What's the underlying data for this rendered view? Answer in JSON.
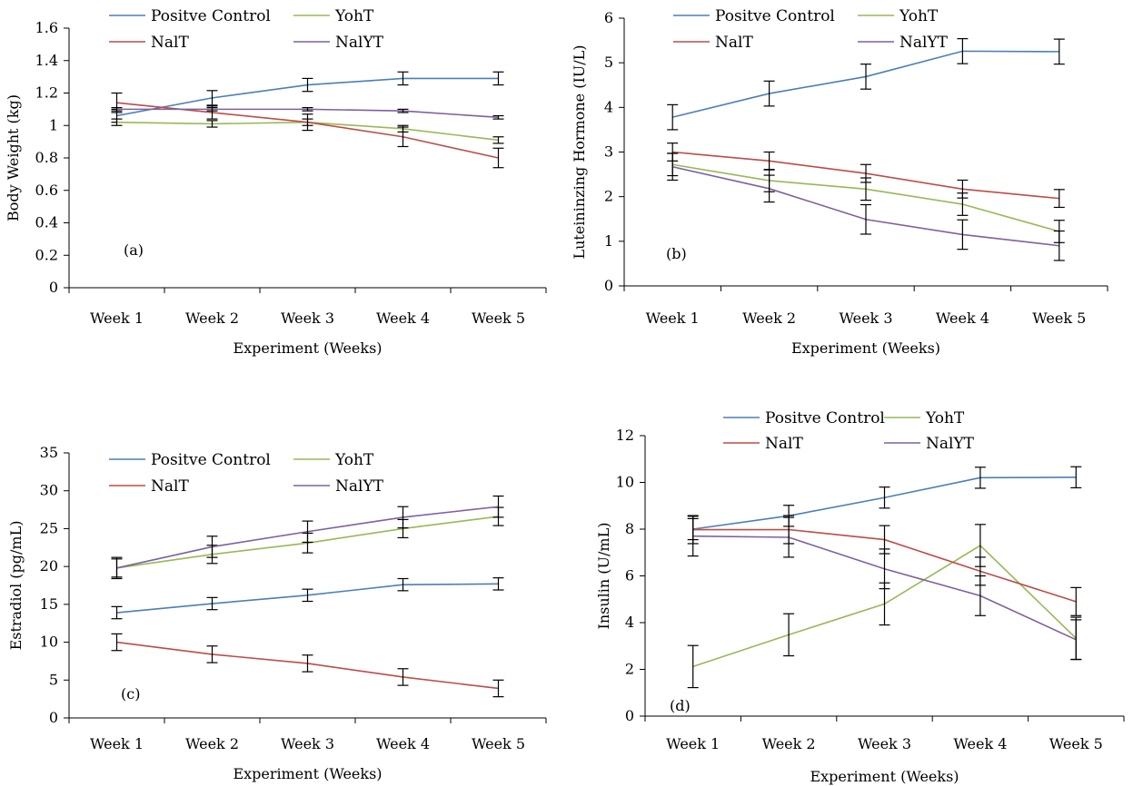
{
  "colors": {
    "positive_control": "#4A7EBB",
    "yoht": "#98B954",
    "nalt": "#BE4B48",
    "nalyt": "#7D60A0",
    "axis": "#000000"
  },
  "chart_data": [
    {
      "type": "line",
      "panel_label": "(a)",
      "xlabel": "Experiment (Weeks)",
      "ylabel": "Body Weight (kg)",
      "categories": [
        "Week 1",
        "Week 2",
        "Week 3",
        "Week 4",
        "Week 5"
      ],
      "ylim": [
        0,
        1.6
      ],
      "yticks": [
        0,
        0.2,
        0.4,
        0.6,
        0.8,
        1,
        1.2,
        1.4,
        1.6
      ],
      "ytick_labels": [
        "0",
        "0.2",
        "0.4",
        "0.6",
        "0.8",
        "1",
        "1.2",
        "1.4",
        "1.6"
      ],
      "grid": false,
      "legend_position": "top",
      "series": [
        {
          "name": "Positve Control",
          "color_key": "positive_control",
          "values": [
            1.06,
            1.17,
            1.25,
            1.29,
            1.29
          ],
          "errors": [
            0.04,
            0.045,
            0.04,
            0.04,
            0.04
          ]
        },
        {
          "name": "YohT",
          "color_key": "yoht",
          "values": [
            1.02,
            1.01,
            1.02,
            0.98,
            0.91
          ],
          "errors": [
            0.02,
            0.02,
            0.02,
            0.02,
            0.02
          ]
        },
        {
          "name": "NalT",
          "color_key": "nalt",
          "values": [
            1.14,
            1.08,
            1.02,
            0.93,
            0.8
          ],
          "errors": [
            0.06,
            0.04,
            0.05,
            0.06,
            0.06
          ]
        },
        {
          "name": "NalYT",
          "color_key": "nalyt",
          "values": [
            1.1,
            1.1,
            1.1,
            1.09,
            1.05
          ],
          "errors": [
            0.01,
            0.01,
            0.01,
            0.01,
            0.01
          ]
        }
      ]
    },
    {
      "type": "line",
      "panel_label": "(b)",
      "xlabel": "Experiment (Weeks)",
      "ylabel": "Luteininzing Hormone (IU/L)",
      "categories": [
        "Week 1",
        "Week 2",
        "Week 3",
        "Week 4",
        "Week 5"
      ],
      "ylim": [
        0,
        6
      ],
      "yticks": [
        0,
        1,
        2,
        3,
        4,
        5,
        6
      ],
      "ytick_labels": [
        "0",
        "1",
        "2",
        "3",
        "4",
        "5",
        "6"
      ],
      "grid": false,
      "legend_position": "top",
      "series": [
        {
          "name": "Positve Control",
          "color_key": "positive_control",
          "values": [
            3.78,
            4.31,
            4.69,
            5.26,
            5.25
          ],
          "errors": [
            0.28,
            0.28,
            0.28,
            0.28,
            0.28
          ]
        },
        {
          "name": "YohT",
          "color_key": "yoht",
          "values": [
            2.72,
            2.36,
            2.17,
            1.83,
            1.22
          ],
          "errors": [
            0.25,
            0.25,
            0.25,
            0.25,
            0.25
          ]
        },
        {
          "name": "NalT",
          "color_key": "nalt",
          "values": [
            3.0,
            2.8,
            2.52,
            2.17,
            1.96
          ],
          "errors": [
            0.2,
            0.2,
            0.2,
            0.2,
            0.2
          ]
        },
        {
          "name": "NalYT",
          "color_key": "nalyt",
          "values": [
            2.67,
            2.18,
            1.49,
            1.15,
            0.9
          ],
          "errors": [
            0.3,
            0.3,
            0.33,
            0.33,
            0.33
          ]
        }
      ]
    },
    {
      "type": "line",
      "panel_label": "(c)",
      "xlabel": "Experiment (Weeks)",
      "ylabel": "Estradiol (pg/mL)",
      "categories": [
        "Week 1",
        "Week 2",
        "Week 3",
        "Week 4",
        "Week 5"
      ],
      "ylim": [
        0,
        35
      ],
      "yticks": [
        0,
        5,
        10,
        15,
        20,
        25,
        30,
        35
      ],
      "ytick_labels": [
        "0",
        "5",
        "10",
        "15",
        "20",
        "25",
        "30",
        "35"
      ],
      "grid": false,
      "legend_position": "top",
      "series": [
        {
          "name": "Positve Control",
          "color_key": "positive_control",
          "values": [
            13.9,
            15.1,
            16.2,
            17.6,
            17.7
          ],
          "errors": [
            0.8,
            0.8,
            0.8,
            0.8,
            0.8
          ]
        },
        {
          "name": "YohT",
          "color_key": "yoht",
          "values": [
            19.8,
            21.6,
            23.1,
            25.0,
            26.6
          ],
          "errors": [
            1.2,
            1.2,
            1.3,
            1.2,
            1.2
          ]
        },
        {
          "name": "NalT",
          "color_key": "nalt",
          "values": [
            10.0,
            8.4,
            7.2,
            5.4,
            3.9
          ],
          "errors": [
            1.1,
            1.1,
            1.1,
            1.1,
            1.1
          ]
        },
        {
          "name": "NalYT",
          "color_key": "nalyt",
          "values": [
            19.8,
            22.6,
            24.6,
            26.5,
            27.9
          ],
          "errors": [
            1.4,
            1.4,
            1.4,
            1.4,
            1.4
          ]
        }
      ]
    },
    {
      "type": "line",
      "panel_label": "(d)",
      "xlabel": "Experiment (Weeks)",
      "ylabel": "Insulin (U/mL)",
      "categories": [
        "Week 1",
        "Week 2",
        "Week 3",
        "Week 4",
        "Week 5"
      ],
      "ylim": [
        0,
        12
      ],
      "yticks": [
        0,
        2,
        4,
        6,
        8,
        10,
        12
      ],
      "ytick_labels": [
        "0",
        "2",
        "4",
        "6",
        "8",
        "10",
        "12"
      ],
      "grid": false,
      "legend_position": "top",
      "series": [
        {
          "name": "Positve Control",
          "color_key": "positive_control",
          "values": [
            8.0,
            8.57,
            9.35,
            10.2,
            10.22
          ],
          "errors": [
            0.45,
            0.45,
            0.45,
            0.45,
            0.45
          ]
        },
        {
          "name": "YohT",
          "color_key": "yoht",
          "values": [
            2.12,
            3.48,
            4.8,
            7.3,
            3.33
          ],
          "errors": [
            0.9,
            0.9,
            0.9,
            0.9,
            0.9
          ]
        },
        {
          "name": "NalT",
          "color_key": "nalt",
          "values": [
            7.98,
            7.98,
            7.55,
            6.2,
            4.9
          ],
          "errors": [
            0.6,
            0.6,
            0.6,
            0.6,
            0.6
          ]
        },
        {
          "name": "NalYT",
          "color_key": "nalyt",
          "values": [
            7.7,
            7.65,
            6.3,
            5.15,
            3.27
          ],
          "errors": [
            0.85,
            0.85,
            0.85,
            0.85,
            0.85
          ]
        }
      ]
    }
  ]
}
